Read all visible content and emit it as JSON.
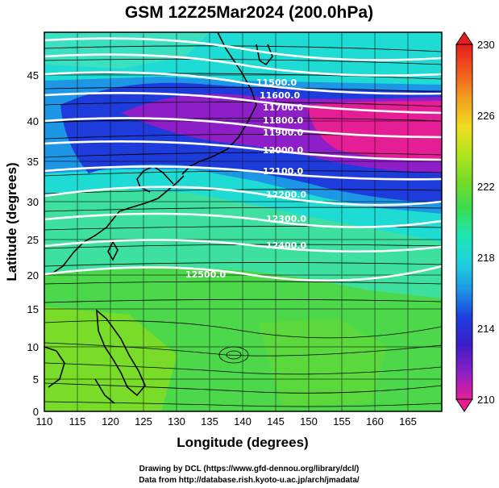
{
  "title": "GSM 12Z25Mar2024 (200.0hPa)",
  "axes": {
    "xlabel": "Longitude (degrees)",
    "ylabel": "Latitude  (degrees)",
    "xticks": [
      "110",
      "115",
      "120",
      "125",
      "130",
      "135",
      "140",
      "145",
      "150",
      "155",
      "160",
      "165"
    ],
    "yticks": [
      "0",
      "5",
      "10",
      "15",
      "20",
      "25",
      "30",
      "35",
      "40",
      "45"
    ]
  },
  "colorbar": {
    "ticks": [
      "210",
      "214",
      "218",
      "222",
      "226",
      "230"
    ],
    "colors": [
      "#e61e96",
      "#8e1ec8",
      "#3a1ec8",
      "#1e3cdc",
      "#1e96e6",
      "#1ed2dc",
      "#1ee6b4",
      "#3cdc50",
      "#78dc28",
      "#b4e61e",
      "#f0dc1e",
      "#f0a01e",
      "#f05a1e",
      "#e61e1e"
    ]
  },
  "contours": {
    "labels": [
      "11500.0",
      "11600.0",
      "11700.0",
      "11800.0",
      "11900.0",
      "12000.0",
      "12100.0",
      "12200.0",
      "12300.0",
      "12400.0",
      "12500.0"
    ]
  },
  "credits": {
    "line1": "Drawing by DCL (https://www.gfd-dennou.org/library/dcl/)",
    "line2": "Data from http://database.rish.kyoto-u.ac.jp/arch/jmadata/"
  },
  "chart_data": {
    "type": "heatmap",
    "title": "GSM 12Z25Mar2024 (200.0hPa)",
    "xlabel": "Longitude (degrees)",
    "ylabel": "Latitude  (degrees)",
    "xlim": [
      110,
      170
    ],
    "ylim": [
      0,
      50
    ],
    "colorbar_range": [
      210,
      230
    ],
    "grid": true,
    "geopotential_height_contours": [
      {
        "value": 11500.0,
        "lat_at_west": 47.5,
        "lat_at_east": 44.0
      },
      {
        "value": 11600.0,
        "lat_at_west": 45.5,
        "lat_at_east": 42.5
      },
      {
        "value": 11700.0,
        "lat_at_west": 44.0,
        "lat_at_east": 41.0
      },
      {
        "value": 11800.0,
        "lat_at_west": 42.0,
        "lat_at_east": 39.5
      },
      {
        "value": 11900.0,
        "lat_at_west": 39.5,
        "lat_at_east": 37.5
      },
      {
        "value": 12000.0,
        "lat_at_west": 37.5,
        "lat_at_east": 35.0
      },
      {
        "value": 12100.0,
        "lat_at_west": 34.5,
        "lat_at_east": 33.0
      },
      {
        "value": 12200.0,
        "lat_at_west": 31.0,
        "lat_at_east": 30.0
      },
      {
        "value": 12300.0,
        "lat_at_west": 28.5,
        "lat_at_east": 26.5
      },
      {
        "value": 12400.0,
        "lat_at_west": 25.0,
        "lat_at_east": 23.0
      },
      {
        "value": 12500.0,
        "lat_at_west": 21.5,
        "lat_at_east": 18.0
      }
    ]
  }
}
